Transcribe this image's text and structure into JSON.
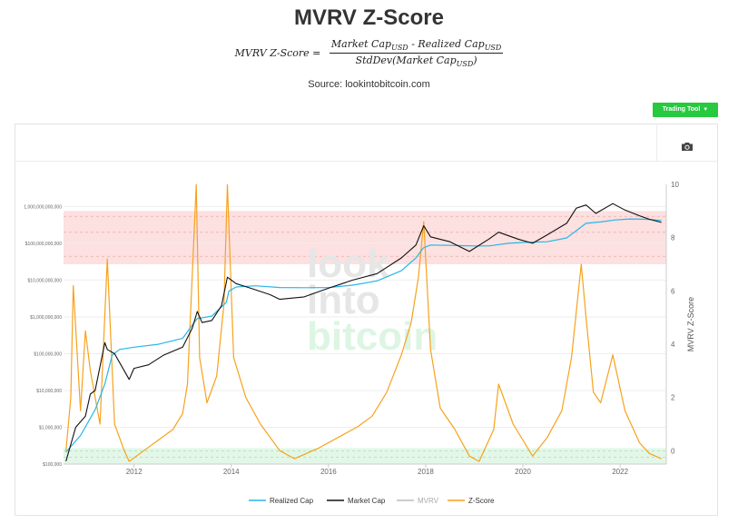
{
  "page": {
    "title": "MVRV Z-Score",
    "formula": {
      "lhs": "MVRV Z-Score =",
      "num_a": "Market Cap",
      "num_b": "USD",
      "num_c": " - Realized Cap",
      "num_d": "USD",
      "den_a": "StdDev(Market Cap",
      "den_b": "USD",
      "den_c": ")"
    },
    "source": "Source: lookintobitcoin.com",
    "trading_tool_label": "Trading Tool",
    "camera_icon": "camera-icon"
  },
  "chart_data": {
    "type": "line",
    "xlim": [
      2010.55,
      2022.95
    ],
    "x_ticks": [
      2012,
      2014,
      2016,
      2018,
      2020,
      2022
    ],
    "left_axis": {
      "scale": "log",
      "range": [
        100000,
        4000000000000
      ],
      "ticks": [
        {
          "value": 100000,
          "label": "$100,000"
        },
        {
          "value": 1000000,
          "label": "$1,000,000"
        },
        {
          "value": 10000000,
          "label": "$10,000,000"
        },
        {
          "value": 100000000,
          "label": "$100,000,000"
        },
        {
          "value": 1000000000,
          "label": "$1,000,000,000"
        },
        {
          "value": 10000000000,
          "label": "$10,000,000,000"
        },
        {
          "value": 100000000000,
          "label": "$100,000,000,000"
        },
        {
          "value": 1000000000000,
          "label": "1,000,000,000,000"
        }
      ]
    },
    "right_axis": {
      "label": "MVRV Z-Score",
      "range": [
        -0.5,
        10
      ],
      "ticks": [
        0,
        2,
        4,
        6,
        8,
        10
      ]
    },
    "zones": [
      {
        "from": 7,
        "to": 9,
        "color": "#fde0e0"
      },
      {
        "from": -0.5,
        "to": 0.1,
        "color": "#e3f7e8"
      }
    ],
    "series": [
      {
        "name": "Realized Cap",
        "color": "#29b6e8",
        "axis": "left",
        "points": [
          [
            2010.6,
            210000
          ],
          [
            2010.9,
            600000
          ],
          [
            2011.2,
            3000000
          ],
          [
            2011.4,
            15000000
          ],
          [
            2011.55,
            90000000
          ],
          [
            2011.7,
            130000000
          ],
          [
            2012.0,
            150000000
          ],
          [
            2012.5,
            180000000
          ],
          [
            2013.0,
            260000000
          ],
          [
            2013.2,
            600000000
          ],
          [
            2013.3,
            900000000
          ],
          [
            2013.6,
            1050000000
          ],
          [
            2013.9,
            2500000000
          ],
          [
            2013.95,
            5000000000
          ],
          [
            2014.1,
            6500000000
          ],
          [
            2014.5,
            7000000000
          ],
          [
            2015.0,
            6300000000
          ],
          [
            2015.5,
            6200000000
          ],
          [
            2016.0,
            6300000000
          ],
          [
            2016.5,
            7300000000
          ],
          [
            2017.0,
            9500000000
          ],
          [
            2017.5,
            18000000000
          ],
          [
            2017.8,
            40000000000
          ],
          [
            2017.95,
            75000000000
          ],
          [
            2018.1,
            90000000000
          ],
          [
            2018.5,
            88000000000
          ],
          [
            2019.0,
            85000000000
          ],
          [
            2019.3,
            85000000000
          ],
          [
            2019.7,
            100000000000
          ],
          [
            2020.0,
            105000000000
          ],
          [
            2020.5,
            110000000000
          ],
          [
            2020.9,
            140000000000
          ],
          [
            2021.1,
            220000000000
          ],
          [
            2021.3,
            350000000000
          ],
          [
            2021.6,
            380000000000
          ],
          [
            2021.9,
            430000000000
          ],
          [
            2022.2,
            460000000000
          ],
          [
            2022.5,
            450000000000
          ],
          [
            2022.85,
            420000000000
          ]
        ]
      },
      {
        "name": "Market Cap",
        "color": "#111111",
        "axis": "left",
        "points": [
          [
            2010.6,
            120000
          ],
          [
            2010.8,
            1000000
          ],
          [
            2011.0,
            2000000
          ],
          [
            2011.1,
            8000000
          ],
          [
            2011.2,
            10000000
          ],
          [
            2011.4,
            200000000
          ],
          [
            2011.45,
            130000000
          ],
          [
            2011.6,
            100000000
          ],
          [
            2011.9,
            20000000
          ],
          [
            2012.0,
            40000000
          ],
          [
            2012.3,
            50000000
          ],
          [
            2012.6,
            90000000
          ],
          [
            2013.0,
            150000000
          ],
          [
            2013.2,
            500000000
          ],
          [
            2013.3,
            1400000000
          ],
          [
            2013.4,
            700000000
          ],
          [
            2013.6,
            800000000
          ],
          [
            2013.8,
            2000000000
          ],
          [
            2013.92,
            12000000000
          ],
          [
            2014.1,
            8000000000
          ],
          [
            2014.4,
            6000000000
          ],
          [
            2014.8,
            4000000000
          ],
          [
            2015.0,
            3000000000
          ],
          [
            2015.5,
            3500000000
          ],
          [
            2016.0,
            6000000000
          ],
          [
            2016.5,
            10000000000
          ],
          [
            2017.0,
            15000000000
          ],
          [
            2017.5,
            40000000000
          ],
          [
            2017.8,
            90000000000
          ],
          [
            2017.96,
            300000000000
          ],
          [
            2018.1,
            150000000000
          ],
          [
            2018.5,
            110000000000
          ],
          [
            2018.9,
            60000000000
          ],
          [
            2019.3,
            130000000000
          ],
          [
            2019.5,
            200000000000
          ],
          [
            2019.9,
            130000000000
          ],
          [
            2020.2,
            100000000000
          ],
          [
            2020.5,
            170000000000
          ],
          [
            2020.9,
            350000000000
          ],
          [
            2021.1,
            900000000000
          ],
          [
            2021.3,
            1100000000000
          ],
          [
            2021.5,
            650000000000
          ],
          [
            2021.85,
            1200000000000
          ],
          [
            2022.1,
            800000000000
          ],
          [
            2022.4,
            560000000000
          ],
          [
            2022.6,
            450000000000
          ],
          [
            2022.85,
            370000000000
          ]
        ]
      },
      {
        "name": "MVRV",
        "color": "#bbbbbb",
        "axis": "right",
        "points": []
      },
      {
        "name": "Z-Score",
        "color": "#f7a21b",
        "axis": "right",
        "points": [
          [
            2010.6,
            0.0
          ],
          [
            2010.7,
            2.0
          ],
          [
            2010.75,
            6.2
          ],
          [
            2010.9,
            1.5
          ],
          [
            2011.0,
            4.5
          ],
          [
            2011.1,
            3.0
          ],
          [
            2011.3,
            1.0
          ],
          [
            2011.45,
            7.2
          ],
          [
            2011.6,
            1.0
          ],
          [
            2011.8,
            0.0
          ],
          [
            2011.9,
            -0.4
          ],
          [
            2012.2,
            0.0
          ],
          [
            2012.5,
            0.4
          ],
          [
            2012.8,
            0.8
          ],
          [
            2013.0,
            1.4
          ],
          [
            2013.1,
            2.5
          ],
          [
            2013.28,
            10.0
          ],
          [
            2013.35,
            3.5
          ],
          [
            2013.5,
            1.8
          ],
          [
            2013.7,
            2.8
          ],
          [
            2013.85,
            5.5
          ],
          [
            2013.92,
            10.0
          ],
          [
            2014.05,
            3.5
          ],
          [
            2014.3,
            2.0
          ],
          [
            2014.6,
            1.0
          ],
          [
            2015.0,
            0.0
          ],
          [
            2015.3,
            -0.3
          ],
          [
            2015.8,
            0.1
          ],
          [
            2016.3,
            0.6
          ],
          [
            2016.6,
            0.9
          ],
          [
            2016.9,
            1.3
          ],
          [
            2017.2,
            2.2
          ],
          [
            2017.5,
            3.6
          ],
          [
            2017.7,
            4.8
          ],
          [
            2017.85,
            6.5
          ],
          [
            2017.96,
            8.6
          ],
          [
            2018.1,
            3.8
          ],
          [
            2018.3,
            1.6
          ],
          [
            2018.6,
            0.8
          ],
          [
            2018.9,
            -0.2
          ],
          [
            2019.1,
            -0.4
          ],
          [
            2019.4,
            0.8
          ],
          [
            2019.5,
            2.5
          ],
          [
            2019.8,
            1.0
          ],
          [
            2020.2,
            -0.2
          ],
          [
            2020.5,
            0.5
          ],
          [
            2020.8,
            1.5
          ],
          [
            2021.0,
            3.5
          ],
          [
            2021.2,
            7.0
          ],
          [
            2021.3,
            5.0
          ],
          [
            2021.45,
            2.2
          ],
          [
            2021.6,
            1.8
          ],
          [
            2021.85,
            3.6
          ],
          [
            2022.1,
            1.5
          ],
          [
            2022.4,
            0.3
          ],
          [
            2022.6,
            -0.1
          ],
          [
            2022.85,
            -0.3
          ]
        ]
      }
    ]
  }
}
